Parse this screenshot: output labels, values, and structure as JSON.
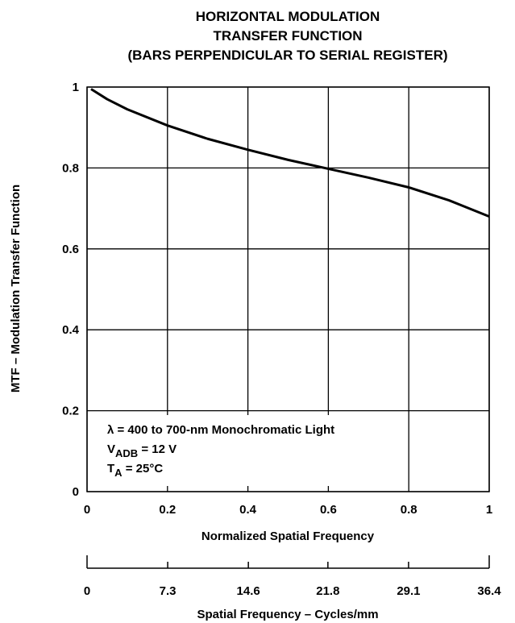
{
  "chart_data": {
    "type": "line",
    "title": [
      "HORIZONTAL MODULATION",
      "TRANSFER FUNCTION",
      "(BARS PERPENDICULAR TO SERIAL REGISTER)"
    ],
    "x_label": "Normalized Spatial Frequency",
    "y_label": "MTF – Modulation Transfer Function",
    "x2_label": "Spatial Frequency – Cycles/mm",
    "x": [
      0.01,
      0.05,
      0.1,
      0.2,
      0.3,
      0.4,
      0.5,
      0.6,
      0.7,
      0.8,
      0.9,
      1
    ],
    "series": [
      {
        "color": "#000000",
        "values": [
          0.995,
          0.97,
          0.945,
          0.905,
          0.872,
          0.845,
          0.82,
          0.798,
          0.776,
          0.752,
          0.72,
          0.68
        ]
      }
    ],
    "xlim": [
      0,
      1
    ],
    "xticks": [
      0,
      0.2,
      0.4,
      0.6,
      0.8,
      1
    ],
    "ylim": [
      0,
      1
    ],
    "yticks": [
      0,
      0.2,
      0.4,
      0.6,
      0.8,
      1
    ],
    "x2lim": [
      0,
      36.4
    ],
    "x2ticks": [
      0,
      7.3,
      14.6,
      21.8,
      29.1,
      36.4
    ],
    "grid": true,
    "annotation": {
      "line1": "λ = 400 to 700-nm Monochromatic Light",
      "line2": {
        "main": "V",
        "sub": "ADB",
        "rest": " = 12 V"
      },
      "line3": {
        "main": "T",
        "sub": "A",
        "rest": " = 25°C"
      }
    }
  }
}
